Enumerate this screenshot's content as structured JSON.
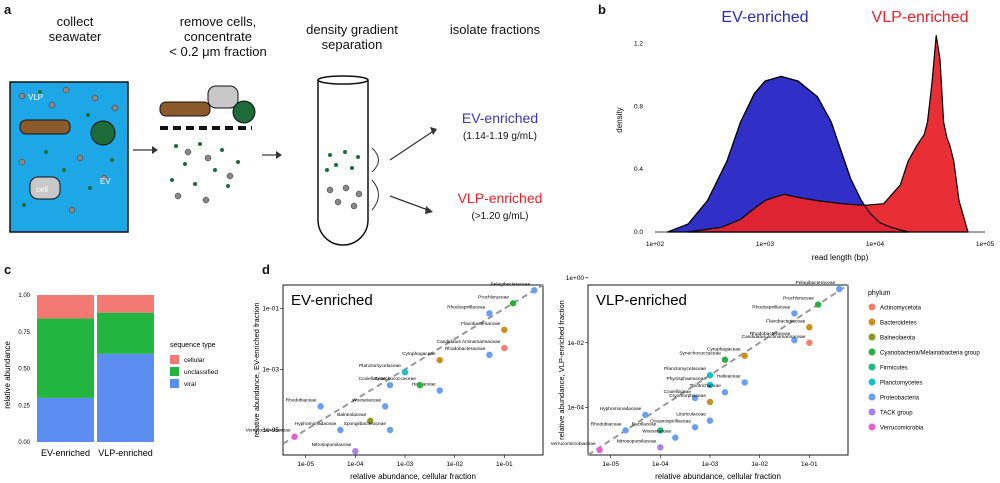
{
  "panel_a": {
    "label": "a",
    "steps": [
      "collect seawater",
      "remove cells, concentrate < 0.2 μm fraction",
      "density gradient separation",
      "isolate fractions"
    ],
    "step_lines": [
      [
        "collect",
        "seawater"
      ],
      [
        "remove cells,",
        "concentrate",
        "< 0.2 μm fraction"
      ],
      [
        "density gradient",
        "separation"
      ],
      [
        "isolate fractions"
      ]
    ],
    "seawater_labels": {
      "vlp": "VLP",
      "ev": "EV",
      "cell": "cell"
    },
    "ev_fraction": {
      "name": "EV-enriched",
      "density": "(1.14-1.19 g/mL)",
      "color": "#3a3ab4"
    },
    "vlp_fraction": {
      "name": "VLP-enriched",
      "density": "(>1.20 g/mL)",
      "color": "#e8232a"
    },
    "seawater_color": "#1da7e6"
  },
  "panel_b": {
    "label": "b",
    "chart_data": {
      "type": "area",
      "xlabel": "read length (bp)",
      "ylabel": "density",
      "xscale": "log",
      "xlim": [
        100,
        100000
      ],
      "ylim": [
        0,
        1.4
      ],
      "x_ticks": [
        "1e+02",
        "1e+03",
        "1e+04",
        "1e+05"
      ],
      "y_ticks": [
        "0.0",
        "0.4",
        "0.8",
        "1.2"
      ],
      "series": [
        {
          "name": "EV-enriched",
          "color": "#3030c8",
          "x": [
            130,
            200,
            300,
            450,
            600,
            800,
            1000,
            1400,
            2000,
            3000,
            4000,
            5000,
            6000,
            7500,
            9000,
            11000,
            14000,
            20000
          ],
          "y": [
            0,
            0.05,
            0.2,
            0.45,
            0.7,
            0.88,
            0.96,
            0.99,
            0.96,
            0.86,
            0.7,
            0.5,
            0.34,
            0.2,
            0.12,
            0.06,
            0.03,
            0
          ]
        },
        {
          "name": "VLP-enriched",
          "color": "#e8232a",
          "x": [
            200,
            400,
            600,
            800,
            1000,
            1200,
            1500,
            2000,
            3000,
            5000,
            8000,
            12000,
            17000,
            20000,
            24000,
            28000,
            30000,
            33000,
            36000,
            39000,
            42000,
            45000,
            48000,
            52000,
            58000,
            70000
          ],
          "y": [
            0,
            0.03,
            0.08,
            0.15,
            0.2,
            0.22,
            0.24,
            0.22,
            0.2,
            0.18,
            0.17,
            0.18,
            0.3,
            0.45,
            0.55,
            0.62,
            0.7,
            0.95,
            1.25,
            1.1,
            0.7,
            0.6,
            0.55,
            0.45,
            0.2,
            0
          ]
        }
      ],
      "legend_in_plot": [
        "EV-enriched",
        "VLP-enriched"
      ]
    }
  },
  "panel_c": {
    "label": "c",
    "chart_data": {
      "type": "bar",
      "stacked": true,
      "categories": [
        "EV-enriched",
        "VLP-enriched"
      ],
      "ylabel": "relative abundance",
      "ylim": [
        0,
        1
      ],
      "y_ticks": [
        "0.00",
        "0.25",
        "0.50",
        "0.75",
        "1.00"
      ],
      "legend_title": "sequence type",
      "series": [
        {
          "name": "viral",
          "color": "#5b8ef0",
          "values": [
            0.3,
            0.6
          ]
        },
        {
          "name": "unclassified",
          "color": "#22b540",
          "values": [
            0.54,
            0.28
          ]
        },
        {
          "name": "cellular",
          "color": "#f27a72",
          "values": [
            0.16,
            0.12
          ]
        }
      ]
    }
  },
  "panel_d": {
    "label": "d",
    "xlabel": "relative abundance, cellular fraction",
    "legend_title": "phylum",
    "phyla": [
      {
        "name": "Actinomycetota",
        "color": "#f08070"
      },
      {
        "name": "Bacteroidetes",
        "color": "#c8901e"
      },
      {
        "name": "Balneolaeota",
        "color": "#8a9a20"
      },
      {
        "name": "Cyanobacteria/Melainabacteria group",
        "color": "#2ab040"
      },
      {
        "name": "Firmicutes",
        "color": "#20b888"
      },
      {
        "name": "Planctomycetes",
        "color": "#18c0c8"
      },
      {
        "name": "Proteobacteria",
        "color": "#6a9ef2"
      },
      {
        "name": "TACK group",
        "color": "#a880e8"
      },
      {
        "name": "Verrucomicrobia",
        "color": "#e860d0"
      }
    ],
    "ev_plot": {
      "chart_data": {
        "type": "scatter",
        "title": "EV-enriched",
        "ylabel": "relative abundance, EV-enriched fraction",
        "xscale": "log",
        "yscale": "log",
        "xlim": [
          3.5e-06,
          0.6
        ],
        "ylim": [
          1.5e-06,
          0.6
        ],
        "x_ticks": [
          "1e-05",
          "1e-04",
          "1e-03",
          "1e-02",
          "1e-01"
        ],
        "y_ticks": [
          "1e-05",
          "1e-03",
          "1e-01"
        ],
        "points": [
          {
            "label": "Pelagibacteraceae",
            "x": 0.4,
            "y": 0.4,
            "phylum": "Proteobacteria"
          },
          {
            "label": "Prochloraceae",
            "x": 0.15,
            "y": 0.15,
            "phylum": "Cyanobacteria/Melainabacteria group"
          },
          {
            "label": "Rhodospirillaceae",
            "x": 0.05,
            "y": 0.07,
            "phylum": "Proteobacteria"
          },
          {
            "label": "Flavobacteriaceae",
            "x": 0.1,
            "y": 0.02,
            "phylum": "Bacteroidetes"
          },
          {
            "label": "Candidatus Actinomarinaceae",
            "x": 0.1,
            "y": 0.005,
            "phylum": "Actinomycetota"
          },
          {
            "label": "Cytophagaceae",
            "x": 0.005,
            "y": 0.002,
            "phylum": "Bacteroidetes"
          },
          {
            "label": "Rhodobacteraceae",
            "x": 0.05,
            "y": 0.003,
            "phylum": "Proteobacteria"
          },
          {
            "label": "Planctomycetaceae",
            "x": 0.001,
            "y": 0.0008,
            "phylum": "Planctomycetes"
          },
          {
            "label": "Coxiellaceae",
            "x": 0.0005,
            "y": 0.0003,
            "phylum": "Proteobacteria"
          },
          {
            "label": "Halieaceae",
            "x": 0.005,
            "y": 0.0002,
            "phylum": "Proteobacteria"
          },
          {
            "label": "Synechococcaceae",
            "x": 0.002,
            "y": 0.0003,
            "phylum": "Cyanobacteria/Melainabacteria group"
          },
          {
            "label": "Rhodobiaceae",
            "x": 2e-05,
            "y": 6e-05,
            "phylum": "Proteobacteria"
          },
          {
            "label": "Woeseiaceae",
            "x": 0.0004,
            "y": 6e-05,
            "phylum": "Proteobacteria"
          },
          {
            "label": "Balneolaceae",
            "x": 0.0002,
            "y": 2e-05,
            "phylum": "Balneolaeota"
          },
          {
            "label": "Spongiibacteraceae",
            "x": 0.0005,
            "y": 1e-05,
            "phylum": "Proteobacteria"
          },
          {
            "label": "Hyphomonadaceae",
            "x": 5e-05,
            "y": 1e-05,
            "phylum": "Proteobacteria"
          },
          {
            "label": "Verrucomicrobiaceae",
            "x": 6e-06,
            "y": 6e-06,
            "phylum": "Verrucomicrobia"
          },
          {
            "label": "Nitrosopumilaceae",
            "x": 0.0001,
            "y": 2e-06,
            "phylum": "TACK group"
          }
        ]
      }
    },
    "vlp_plot": {
      "chart_data": {
        "type": "scatter",
        "title": "VLP-enriched",
        "ylabel": "relative abundance, VLP-enriched fraction",
        "xscale": "log",
        "yscale": "log",
        "xlim": [
          3.5e-06,
          0.6
        ],
        "ylim": [
          3.5e-06,
          0.6
        ],
        "x_ticks": [
          "1e-05",
          "1e-04",
          "1e-03",
          "1e-02",
          "1e-01"
        ],
        "y_ticks": [
          "1e-04",
          "1e-02",
          "1e+00"
        ],
        "points": [
          {
            "label": "Pelagibacteraceae",
            "x": 0.4,
            "y": 0.45,
            "phylum": "Proteobacteria"
          },
          {
            "label": "Prochloraceae",
            "x": 0.15,
            "y": 0.15,
            "phylum": "Cyanobacteria/Melainabacteria group"
          },
          {
            "label": "Rhodospirillaceae",
            "x": 0.05,
            "y": 0.08,
            "phylum": "Proteobacteria"
          },
          {
            "label": "Flavobacteriaceae",
            "x": 0.1,
            "y": 0.03,
            "phylum": "Bacteroidetes"
          },
          {
            "label": "Rhodobacteraceae",
            "x": 0.05,
            "y": 0.012,
            "phylum": "Proteobacteria"
          },
          {
            "label": "Candidatus Actinomarinaceae",
            "x": 0.1,
            "y": 0.01,
            "phylum": "Actinomycetota"
          },
          {
            "label": "Cytophagaceae",
            "x": 0.005,
            "y": 0.004,
            "phylum": "Bacteroidetes"
          },
          {
            "label": "Synechococcaceae",
            "x": 0.002,
            "y": 0.003,
            "phylum": "Cyanobacteria/Melainabacteria group"
          },
          {
            "label": "Halieaceae",
            "x": 0.005,
            "y": 0.0006,
            "phylum": "Proteobacteria"
          },
          {
            "label": "Planctomycetaceae",
            "x": 0.001,
            "y": 0.001,
            "phylum": "Planctomycetes"
          },
          {
            "label": "Phycisphaeraceae",
            "x": 0.001,
            "y": 0.0005,
            "phylum": "Planctomycetes"
          },
          {
            "label": "Thiotrichaceae",
            "x": 0.002,
            "y": 0.0003,
            "phylum": "Proteobacteria"
          },
          {
            "label": "Coxiellaceae",
            "x": 0.0005,
            "y": 0.0002,
            "phylum": "Proteobacteria"
          },
          {
            "label": "Cryomorphaceae",
            "x": 0.001,
            "y": 0.00015,
            "phylum": "Bacteroidetes"
          },
          {
            "label": "Hyphomonadaceae",
            "x": 5e-05,
            "y": 6e-05,
            "phylum": "Proteobacteria"
          },
          {
            "label": "Litoricolaceae",
            "x": 0.001,
            "y": 4e-05,
            "phylum": "Proteobacteria"
          },
          {
            "label": "Bacillaceae",
            "x": 0.0001,
            "y": 2e-05,
            "phylum": "Firmicutes"
          },
          {
            "label": "Oceanospirillaceae",
            "x": 0.0005,
            "y": 2.5e-05,
            "phylum": "Proteobacteria"
          },
          {
            "label": "Rhodobiaceae",
            "x": 2e-05,
            "y": 2e-05,
            "phylum": "Proteobacteria"
          },
          {
            "label": "Woeseiaceae",
            "x": 0.0002,
            "y": 1.2e-05,
            "phylum": "Proteobacteria"
          },
          {
            "label": "Nitrosopumilaceae",
            "x": 0.0001,
            "y": 6e-06,
            "phylum": "TACK group"
          },
          {
            "label": "Verrucomicrobiaceae",
            "x": 6e-06,
            "y": 5e-06,
            "phylum": "Verrucomicrobia"
          }
        ]
      }
    }
  }
}
